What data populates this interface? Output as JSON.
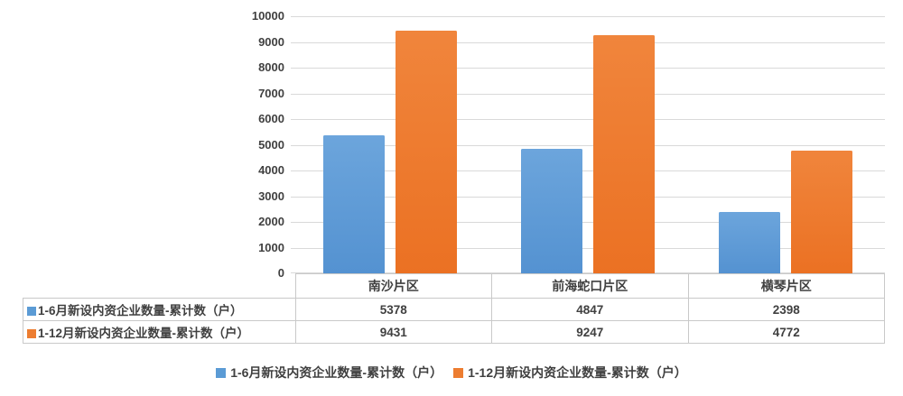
{
  "chart_data": {
    "type": "bar",
    "title": "",
    "categories": [
      "南沙片区",
      "前海蛇口片区",
      "横琴片区"
    ],
    "series": [
      {
        "name": "1-6月新设内资企业数量-累计数（户）",
        "values": [
          5378,
          4847,
          2398
        ],
        "color": "#5B9BD5",
        "color_light": "#6CA5DC",
        "color_dark": "#5492D1"
      },
      {
        "name": "1-12月新设内资企业数量-累计数（户）",
        "values": [
          9431,
          9247,
          4772
        ],
        "color": "#ED7D31",
        "color_light": "#F0853C",
        "color_dark": "#EB7123"
      }
    ],
    "ylim": [
      0,
      10000
    ],
    "yticks": [
      0,
      1000,
      2000,
      3000,
      4000,
      5000,
      6000,
      7000,
      8000,
      9000,
      10000
    ],
    "grid": true,
    "legend_position": "bottom",
    "show_data_table": true
  },
  "style": {
    "background": "#FFFFFF",
    "text_color": "#404040",
    "grid_color": "#D9D9D9",
    "table_border_color": "#C9C9C9"
  }
}
